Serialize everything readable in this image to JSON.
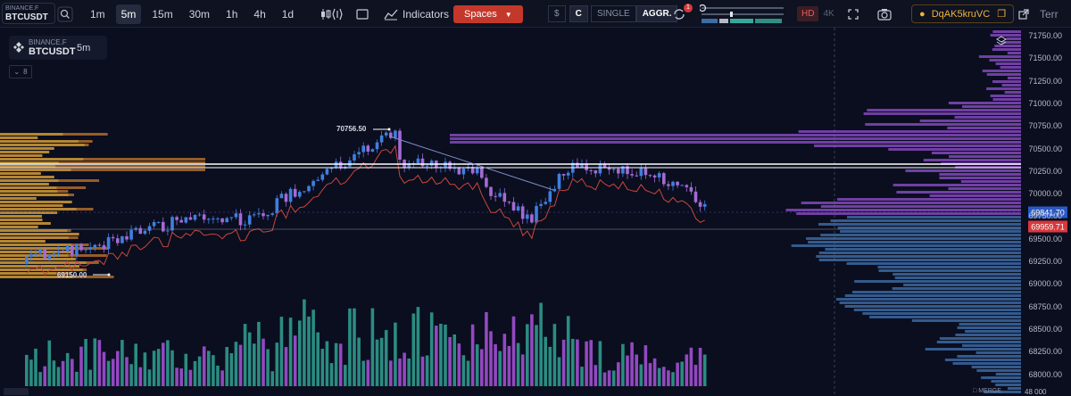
{
  "toolbar": {
    "symbol_exchange": "BINANCE.F",
    "symbol_name": "BTCUSDT",
    "timeframes": [
      {
        "label": "1m",
        "active": false
      },
      {
        "label": "5m",
        "active": true
      },
      {
        "label": "15m",
        "active": false
      },
      {
        "label": "30m",
        "active": false
      },
      {
        "label": "1h",
        "active": false
      },
      {
        "label": "4h",
        "active": false
      },
      {
        "label": "1d",
        "active": false
      }
    ],
    "indicators_label": "Indicators",
    "spaces_label": "Spaces",
    "currency_dollar": "$",
    "currency_c": "C",
    "mode_single": "SINGLE",
    "mode_aggr": "AGGR.",
    "alerts_badge": "1",
    "quality_hd": "HD",
    "quality_4k": "4K",
    "account_name": "DqAK5kruVC",
    "cut_text": "Terr"
  },
  "chart_header": {
    "exchange": "BINANCE.F",
    "symbol": "BTCUSDT",
    "timeframe": "5m",
    "indicator_count": "8"
  },
  "markers": {
    "high_label": "70756.50",
    "low_label": "69150.00"
  },
  "price_axis": {
    "labels": [
      "71750.00",
      "71500.00",
      "71250.00",
      "71000.00",
      "70750.00",
      "70500.00",
      "70250.00",
      "70000.00",
      "69750.00",
      "69500.00",
      "69250.00",
      "69000.00",
      "68750.00",
      "68500.00",
      "68250.00",
      "68000.00"
    ],
    "current_price": "69841.70",
    "red_price": "69959.71",
    "bottom_cut": "68000.00"
  },
  "bottom": {
    "merge_label": "MERGE",
    "bottom_price": "48 000"
  },
  "colors": {
    "bg": "#0a0e1f",
    "candle_up": "#3f7fe0",
    "candle_down": "#a46ad6",
    "vol_up": "#2f9a8c",
    "vol_down": "#a24fd1",
    "vp_purple": "#8a4cc4",
    "vp_blue": "#3f6ea8",
    "vp_left": "#b06a28",
    "current_price_tag": "#2b59c3",
    "red_tag": "#d8383c"
  }
}
